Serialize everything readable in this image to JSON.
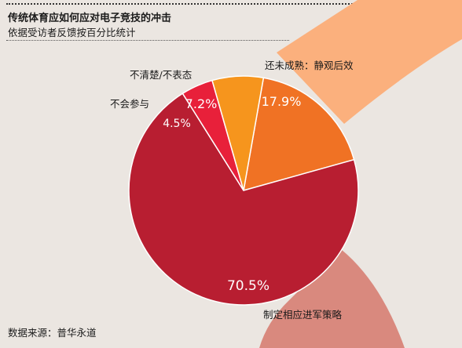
{
  "header": {
    "title": "传统体育应如何应对电子竞技的冲击",
    "subtitle": "依据受访者反馈按百分比统计"
  },
  "footer": {
    "source": "数据来源：普华永道"
  },
  "chart_data": {
    "type": "pie",
    "title": "传统体育应如何应对电子竞技的冲击",
    "subtitle": "依据受访者反馈按百分比统计",
    "unit": "%",
    "slices": [
      {
        "label": "还未成熟：静观后效",
        "value": 17.9,
        "value_label": "17.9%",
        "color": "#f07224"
      },
      {
        "label": "制定相应进军策略",
        "value": 70.5,
        "value_label": "70.5%",
        "color": "#b81e31"
      },
      {
        "label": "不会参与",
        "value": 4.5,
        "value_label": "4.5%",
        "color": "#e8203a"
      },
      {
        "label": "不清楚/不表态",
        "value": 7.2,
        "value_label": "7.2%",
        "color": "#f6951d"
      }
    ],
    "start_angle_deg": 10,
    "direction": "clockwise",
    "band_colors": {
      "upper": "#fbb07d",
      "lower": "#d9897e"
    },
    "slice_border_color": "#ffffff",
    "value_label_color": "#ffffff"
  }
}
